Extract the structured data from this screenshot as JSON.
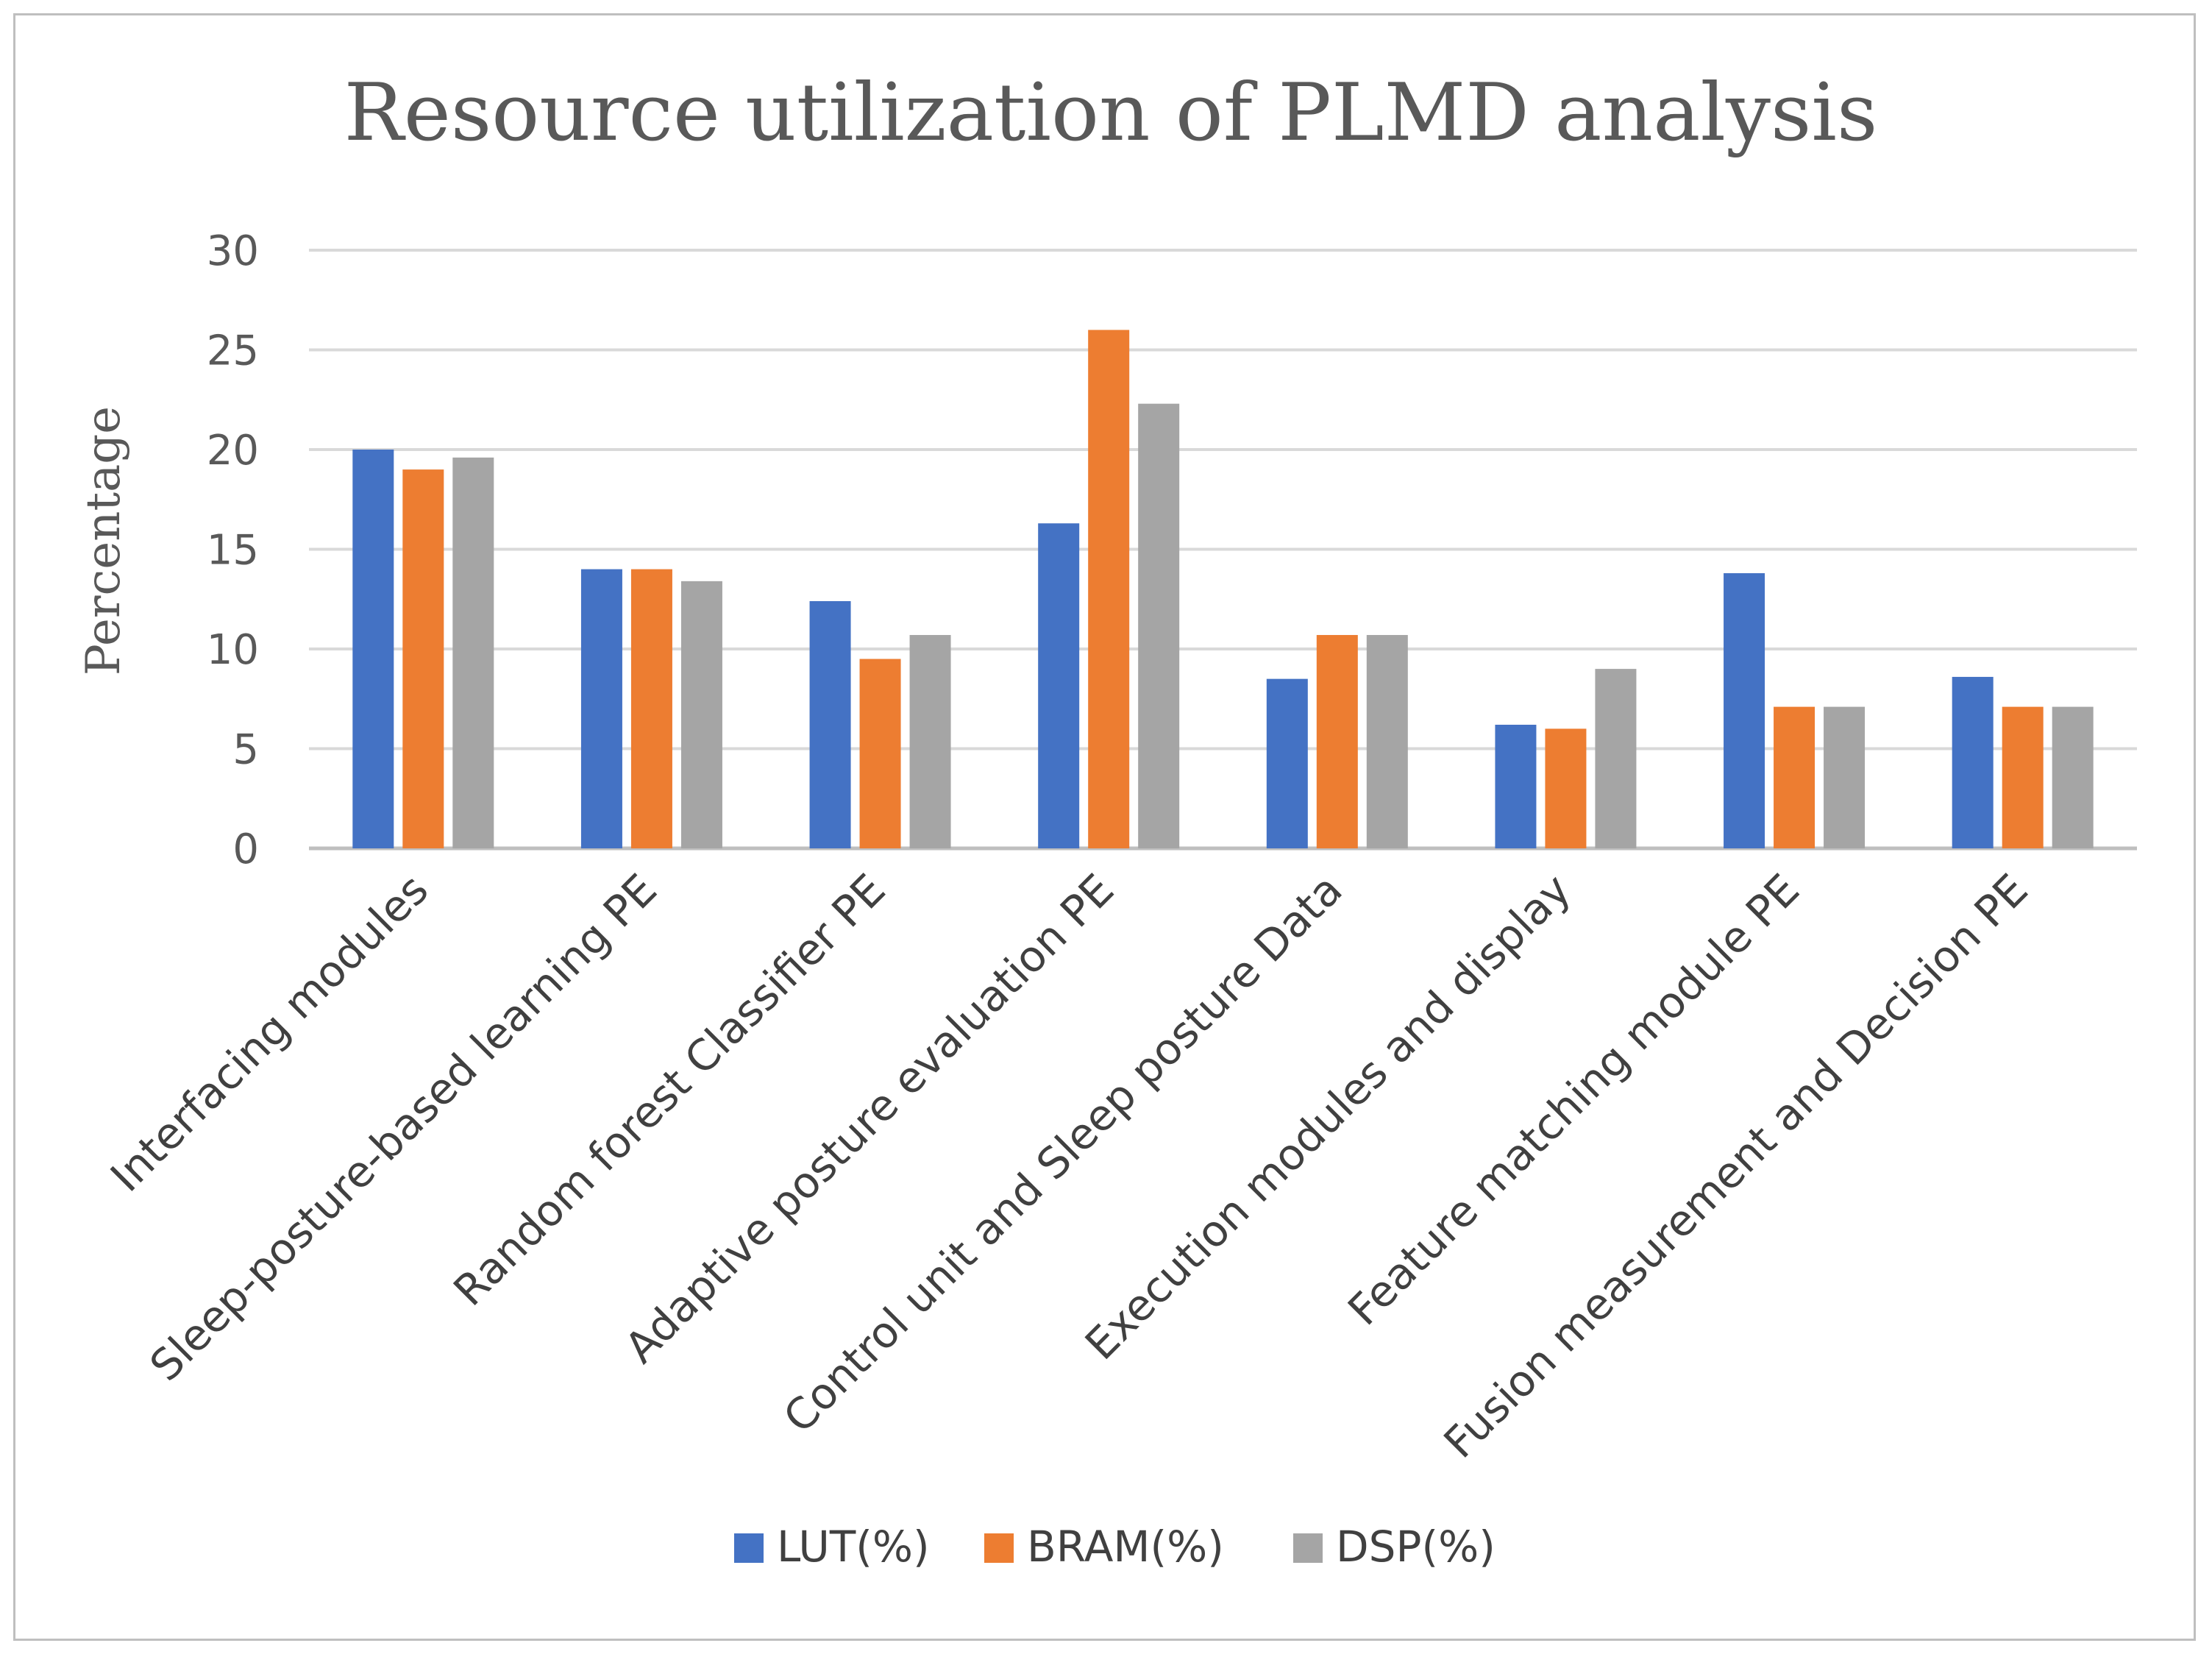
{
  "chart_data": {
    "type": "bar",
    "title": "Resource utilization of PLMD analysis",
    "xlabel": "",
    "ylabel": "Percentage",
    "ylim": [
      0,
      30
    ],
    "yticks": [
      0,
      5,
      10,
      15,
      20,
      25,
      30
    ],
    "grid": true,
    "legend_position": "bottom",
    "categories": [
      "Interfacing modules",
      "Sleep-posture-based learning PE",
      "Random forest Classifier PE",
      "Adaptive posture evaluation PE",
      "Control unit and Sleep posture Data",
      "Execution modules and display",
      "Feature matching module PE",
      "Fusion measurement and Decision PE"
    ],
    "series": [
      {
        "name": "LUT(%)",
        "color": "#4472c4",
        "values": [
          20.0,
          14.0,
          12.4,
          16.3,
          8.5,
          6.2,
          13.8,
          8.6
        ]
      },
      {
        "name": "BRAM(%)",
        "color": "#ed7d31",
        "values": [
          19.0,
          14.0,
          9.5,
          26.0,
          10.7,
          6.0,
          7.1,
          7.1
        ]
      },
      {
        "name": "DSP(%)",
        "color": "#a5a5a5",
        "values": [
          19.6,
          13.4,
          10.7,
          22.3,
          10.7,
          9.0,
          7.1,
          7.1
        ]
      }
    ]
  }
}
